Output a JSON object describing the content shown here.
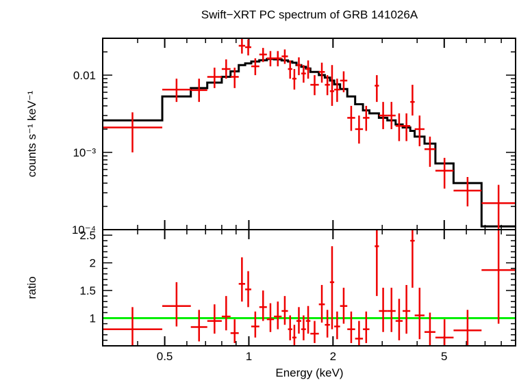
{
  "chart_data": {
    "title": "Swift−XRT PC spectrum of GRB 141026A",
    "type": "scatter",
    "x_scale": "log",
    "xlabel": "Energy (keV)",
    "x_range": [
      0.3,
      9.0
    ],
    "x_tick_labels": [
      {
        "value": 0.5,
        "label": "0.5"
      },
      {
        "value": 1,
        "label": "1"
      },
      {
        "value": 2,
        "label": "2"
      },
      {
        "value": 5,
        "label": "5"
      }
    ],
    "x_minor_ticks": [
      0.4,
      0.6,
      0.7,
      0.8,
      0.9,
      3,
      4,
      6,
      7,
      8,
      9
    ],
    "panels": [
      {
        "name": "spectrum",
        "ylabel": "counts s⁻¹ keV⁻¹",
        "y_scale": "log",
        "y_range": [
          0.0001,
          0.03
        ],
        "y_tick_labels": [
          {
            "value": 0.01,
            "label": "0.01"
          },
          {
            "value": 0.001,
            "label": "10⁻³"
          },
          {
            "value": 0.0001,
            "label": "10⁻⁴"
          }
        ],
        "data_color": "#ee0000",
        "model_color": "#000000",
        "data": [
          {
            "xlo": 0.3,
            "xhi": 0.49,
            "y": 0.0021,
            "ylo": 0.001,
            "yhi": 0.0033
          },
          {
            "xlo": 0.49,
            "xhi": 0.62,
            "y": 0.0065,
            "ylo": 0.0045,
            "yhi": 0.009
          },
          {
            "xlo": 0.62,
            "xhi": 0.71,
            "y": 0.0064,
            "ylo": 0.0045,
            "yhi": 0.009
          },
          {
            "xlo": 0.71,
            "xhi": 0.8,
            "y": 0.0095,
            "ylo": 0.0068,
            "yhi": 0.0125
          },
          {
            "xlo": 0.8,
            "xhi": 0.86,
            "y": 0.012,
            "ylo": 0.009,
            "yhi": 0.016
          },
          {
            "xlo": 0.86,
            "xhi": 0.92,
            "y": 0.0095,
            "ylo": 0.0068,
            "yhi": 0.0125
          },
          {
            "xlo": 0.92,
            "xhi": 0.97,
            "y": 0.024,
            "ylo": 0.019,
            "yhi": 0.03
          },
          {
            "xlo": 0.97,
            "xhi": 1.02,
            "y": 0.023,
            "ylo": 0.018,
            "yhi": 0.029
          },
          {
            "xlo": 1.02,
            "xhi": 1.09,
            "y": 0.013,
            "ylo": 0.01,
            "yhi": 0.0165
          },
          {
            "xlo": 1.09,
            "xhi": 1.16,
            "y": 0.0185,
            "ylo": 0.0148,
            "yhi": 0.0225
          },
          {
            "xlo": 1.16,
            "xhi": 1.23,
            "y": 0.0165,
            "ylo": 0.013,
            "yhi": 0.0205
          },
          {
            "xlo": 1.23,
            "xhi": 1.31,
            "y": 0.0165,
            "ylo": 0.013,
            "yhi": 0.0205
          },
          {
            "xlo": 1.31,
            "xhi": 1.38,
            "y": 0.0175,
            "ylo": 0.014,
            "yhi": 0.0215
          },
          {
            "xlo": 1.38,
            "xhi": 1.43,
            "y": 0.012,
            "ylo": 0.009,
            "yhi": 0.0155
          },
          {
            "xlo": 1.43,
            "xhi": 1.48,
            "y": 0.009,
            "ylo": 0.0065,
            "yhi": 0.012
          },
          {
            "xlo": 1.48,
            "xhi": 1.54,
            "y": 0.0135,
            "ylo": 0.01,
            "yhi": 0.017
          },
          {
            "xlo": 1.54,
            "xhi": 1.6,
            "y": 0.0105,
            "ylo": 0.008,
            "yhi": 0.0135
          },
          {
            "xlo": 1.6,
            "xhi": 1.66,
            "y": 0.012,
            "ylo": 0.009,
            "yhi": 0.0155
          },
          {
            "xlo": 1.66,
            "xhi": 1.78,
            "y": 0.0075,
            "ylo": 0.0055,
            "yhi": 0.01
          },
          {
            "xlo": 1.78,
            "xhi": 1.87,
            "y": 0.011,
            "ylo": 0.008,
            "yhi": 0.0145
          },
          {
            "xlo": 1.87,
            "xhi": 1.95,
            "y": 0.0075,
            "ylo": 0.0055,
            "yhi": 0.01
          },
          {
            "xlo": 1.95,
            "xhi": 2.02,
            "y": 0.0062,
            "ylo": 0.004,
            "yhi": 0.0135
          },
          {
            "xlo": 2.02,
            "xhi": 2.12,
            "y": 0.0065,
            "ylo": 0.0045,
            "yhi": 0.009
          },
          {
            "xlo": 2.12,
            "xhi": 2.25,
            "y": 0.0085,
            "ylo": 0.006,
            "yhi": 0.0112
          },
          {
            "xlo": 2.25,
            "xhi": 2.4,
            "y": 0.0028,
            "ylo": 0.0019,
            "yhi": 0.004
          },
          {
            "xlo": 2.4,
            "xhi": 2.56,
            "y": 0.002,
            "ylo": 0.0013,
            "yhi": 0.003
          },
          {
            "xlo": 2.56,
            "xhi": 2.7,
            "y": 0.0028,
            "ylo": 0.0019,
            "yhi": 0.004
          },
          {
            "xlo": 2.82,
            "xhi": 2.92,
            "y": 0.0073,
            "ylo": 0.0045,
            "yhi": 0.01
          },
          {
            "xlo": 2.92,
            "xhi": 3.13,
            "y": 0.003,
            "ylo": 0.002,
            "yhi": 0.0045
          },
          {
            "xlo": 3.13,
            "xhi": 3.35,
            "y": 0.003,
            "ylo": 0.002,
            "yhi": 0.0045
          },
          {
            "xlo": 3.35,
            "xhi": 3.55,
            "y": 0.0022,
            "ylo": 0.0014,
            "yhi": 0.0032
          },
          {
            "xlo": 3.55,
            "xhi": 3.78,
            "y": 0.0022,
            "ylo": 0.0014,
            "yhi": 0.0032
          },
          {
            "xlo": 3.78,
            "xhi": 3.92,
            "y": 0.0045,
            "ylo": 0.003,
            "yhi": 0.0075
          },
          {
            "xlo": 3.92,
            "xhi": 4.25,
            "y": 0.002,
            "ylo": 0.0012,
            "yhi": 0.003
          },
          {
            "xlo": 4.25,
            "xhi": 4.65,
            "y": 0.0011,
            "ylo": 0.00065,
            "yhi": 0.0016
          },
          {
            "xlo": 4.65,
            "xhi": 5.4,
            "y": 0.00058,
            "ylo": 0.00034,
            "yhi": 0.00085
          },
          {
            "xlo": 5.4,
            "xhi": 6.8,
            "y": 0.00032,
            "ylo": 0.0002,
            "yhi": 0.00048
          },
          {
            "xlo": 6.8,
            "xhi": 9.0,
            "y": 0.00022,
            "ylo": 0.0001,
            "yhi": 0.00038
          }
        ],
        "model_steps": [
          {
            "xlo": 0.3,
            "xhi": 0.49,
            "y": 0.0026
          },
          {
            "xlo": 0.49,
            "xhi": 0.62,
            "y": 0.0053
          },
          {
            "xlo": 0.62,
            "xhi": 0.71,
            "y": 0.0068
          },
          {
            "xlo": 0.71,
            "xhi": 0.8,
            "y": 0.008
          },
          {
            "xlo": 0.8,
            "xhi": 0.86,
            "y": 0.0095
          },
          {
            "xlo": 0.86,
            "xhi": 0.92,
            "y": 0.0112
          },
          {
            "xlo": 0.92,
            "xhi": 0.97,
            "y": 0.0135
          },
          {
            "xlo": 0.97,
            "xhi": 1.02,
            "y": 0.0142
          },
          {
            "xlo": 1.02,
            "xhi": 1.09,
            "y": 0.015
          },
          {
            "xlo": 1.09,
            "xhi": 1.16,
            "y": 0.0156
          },
          {
            "xlo": 1.16,
            "xhi": 1.23,
            "y": 0.0162
          },
          {
            "xlo": 1.23,
            "xhi": 1.31,
            "y": 0.016
          },
          {
            "xlo": 1.31,
            "xhi": 1.38,
            "y": 0.0155
          },
          {
            "xlo": 1.38,
            "xhi": 1.43,
            "y": 0.015
          },
          {
            "xlo": 1.43,
            "xhi": 1.48,
            "y": 0.0145
          },
          {
            "xlo": 1.48,
            "xhi": 1.54,
            "y": 0.0135
          },
          {
            "xlo": 1.54,
            "xhi": 1.6,
            "y": 0.0128
          },
          {
            "xlo": 1.6,
            "xhi": 1.66,
            "y": 0.0122
          },
          {
            "xlo": 1.66,
            "xhi": 1.78,
            "y": 0.011
          },
          {
            "xlo": 1.78,
            "xhi": 1.87,
            "y": 0.01
          },
          {
            "xlo": 1.87,
            "xhi": 1.95,
            "y": 0.0093
          },
          {
            "xlo": 1.95,
            "xhi": 2.02,
            "y": 0.0085
          },
          {
            "xlo": 2.02,
            "xhi": 2.12,
            "y": 0.0076
          },
          {
            "xlo": 2.12,
            "xhi": 2.25,
            "y": 0.0066
          },
          {
            "xlo": 2.25,
            "xhi": 2.4,
            "y": 0.0053
          },
          {
            "xlo": 2.4,
            "xhi": 2.56,
            "y": 0.0042
          },
          {
            "xlo": 2.56,
            "xhi": 2.7,
            "y": 0.0035
          },
          {
            "xlo": 2.7,
            "xhi": 2.92,
            "y": 0.0032
          },
          {
            "xlo": 2.92,
            "xhi": 3.13,
            "y": 0.0028
          },
          {
            "xlo": 3.13,
            "xhi": 3.35,
            "y": 0.0026
          },
          {
            "xlo": 3.35,
            "xhi": 3.55,
            "y": 0.0023
          },
          {
            "xlo": 3.55,
            "xhi": 3.78,
            "y": 0.0021
          },
          {
            "xlo": 3.78,
            "xhi": 3.92,
            "y": 0.0019
          },
          {
            "xlo": 3.92,
            "xhi": 4.25,
            "y": 0.0016
          },
          {
            "xlo": 4.25,
            "xhi": 4.65,
            "y": 0.0013
          },
          {
            "xlo": 4.65,
            "xhi": 5.4,
            "y": 0.00072
          },
          {
            "xlo": 5.4,
            "xhi": 6.8,
            "y": 0.0004
          },
          {
            "xlo": 6.8,
            "xhi": 9.0,
            "y": 0.00011
          }
        ]
      },
      {
        "name": "ratio",
        "ylabel": "ratio",
        "y_scale": "linear",
        "y_range": [
          0.5,
          2.6
        ],
        "y_tick_labels": [
          {
            "value": 1,
            "label": "1"
          },
          {
            "value": 1.5,
            "label": "1.5"
          },
          {
            "value": 2,
            "label": "2"
          },
          {
            "value": 2.5,
            "label": "2.5"
          }
        ],
        "reference_line": {
          "y": 1.0,
          "color": "#00ee00"
        },
        "data_color": "#ee0000",
        "data": [
          {
            "xlo": 0.3,
            "xhi": 0.49,
            "y": 0.8,
            "ylo": 0.42,
            "yhi": 1.2
          },
          {
            "xlo": 0.49,
            "xhi": 0.62,
            "y": 1.22,
            "ylo": 0.85,
            "yhi": 1.65
          },
          {
            "xlo": 0.62,
            "xhi": 0.71,
            "y": 0.84,
            "ylo": 0.58,
            "yhi": 1.15
          },
          {
            "xlo": 0.71,
            "xhi": 0.8,
            "y": 0.95,
            "ylo": 0.72,
            "yhi": 1.25
          },
          {
            "xlo": 0.8,
            "xhi": 0.86,
            "y": 1.03,
            "ylo": 0.78,
            "yhi": 1.4
          },
          {
            "xlo": 0.86,
            "xhi": 0.92,
            "y": 0.73,
            "ylo": 0.55,
            "yhi": 0.98
          },
          {
            "xlo": 0.92,
            "xhi": 0.97,
            "y": 1.62,
            "ylo": 1.3,
            "yhi": 2.1
          },
          {
            "xlo": 0.97,
            "xhi": 1.02,
            "y": 1.52,
            "ylo": 1.2,
            "yhi": 1.85
          },
          {
            "xlo": 1.02,
            "xhi": 1.09,
            "y": 0.85,
            "ylo": 0.65,
            "yhi": 1.12
          },
          {
            "xlo": 1.09,
            "xhi": 1.16,
            "y": 1.2,
            "ylo": 0.95,
            "yhi": 1.5
          },
          {
            "xlo": 1.16,
            "xhi": 1.23,
            "y": 0.98,
            "ylo": 0.75,
            "yhi": 1.27
          },
          {
            "xlo": 1.23,
            "xhi": 1.31,
            "y": 1.03,
            "ylo": 0.8,
            "yhi": 1.3
          },
          {
            "xlo": 1.31,
            "xhi": 1.38,
            "y": 1.13,
            "ylo": 0.88,
            "yhi": 1.4
          },
          {
            "xlo": 1.38,
            "xhi": 1.43,
            "y": 0.8,
            "ylo": 0.6,
            "yhi": 1.05
          },
          {
            "xlo": 1.43,
            "xhi": 1.48,
            "y": 0.65,
            "ylo": 0.48,
            "yhi": 0.88
          },
          {
            "xlo": 1.48,
            "xhi": 1.54,
            "y": 0.95,
            "ylo": 0.72,
            "yhi": 1.2
          },
          {
            "xlo": 1.54,
            "xhi": 1.6,
            "y": 0.8,
            "ylo": 0.6,
            "yhi": 1.05
          },
          {
            "xlo": 1.6,
            "xhi": 1.66,
            "y": 0.95,
            "ylo": 0.72,
            "yhi": 1.22
          },
          {
            "xlo": 1.66,
            "xhi": 1.78,
            "y": 0.72,
            "ylo": 0.55,
            "yhi": 0.95
          },
          {
            "xlo": 1.78,
            "xhi": 1.87,
            "y": 1.25,
            "ylo": 0.92,
            "yhi": 1.6
          },
          {
            "xlo": 1.87,
            "xhi": 1.95,
            "y": 0.88,
            "ylo": 0.65,
            "yhi": 1.15
          },
          {
            "xlo": 1.95,
            "xhi": 2.02,
            "y": 1.65,
            "ylo": 0.8,
            "yhi": 2.3
          },
          {
            "xlo": 2.02,
            "xhi": 2.12,
            "y": 0.85,
            "ylo": 0.62,
            "yhi": 1.12
          },
          {
            "xlo": 2.12,
            "xhi": 2.25,
            "y": 1.22,
            "ylo": 0.9,
            "yhi": 1.55
          },
          {
            "xlo": 2.25,
            "xhi": 2.4,
            "y": 0.8,
            "ylo": 0.55,
            "yhi": 1.12
          },
          {
            "xlo": 2.4,
            "xhi": 2.56,
            "y": 0.63,
            "ylo": 0.4,
            "yhi": 0.95
          },
          {
            "xlo": 2.56,
            "xhi": 2.7,
            "y": 0.8,
            "ylo": 0.55,
            "yhi": 1.12
          },
          {
            "xlo": 2.82,
            "xhi": 2.92,
            "y": 2.3,
            "ylo": 1.4,
            "yhi": 2.9
          },
          {
            "xlo": 2.92,
            "xhi": 3.13,
            "y": 1.13,
            "ylo": 0.75,
            "yhi": 1.55
          },
          {
            "xlo": 3.13,
            "xhi": 3.35,
            "y": 1.13,
            "ylo": 0.75,
            "yhi": 1.55
          },
          {
            "xlo": 3.35,
            "xhi": 3.55,
            "y": 0.95,
            "ylo": 0.6,
            "yhi": 1.35
          },
          {
            "xlo": 3.55,
            "xhi": 3.78,
            "y": 1.13,
            "ylo": 0.72,
            "yhi": 1.6
          },
          {
            "xlo": 3.78,
            "xhi": 3.92,
            "y": 2.4,
            "ylo": 1.55,
            "yhi": 2.95
          },
          {
            "xlo": 3.92,
            "xhi": 4.25,
            "y": 1.05,
            "ylo": 0.62,
            "yhi": 1.55
          },
          {
            "xlo": 4.25,
            "xhi": 4.65,
            "y": 0.75,
            "ylo": 0.48,
            "yhi": 1.1
          },
          {
            "xlo": 4.65,
            "xhi": 5.4,
            "y": 0.65,
            "ylo": 0.4,
            "yhi": 0.98
          },
          {
            "xlo": 5.4,
            "xhi": 6.8,
            "y": 0.78,
            "ylo": 0.48,
            "yhi": 1.15
          },
          {
            "xlo": 6.8,
            "xhi": 9.0,
            "y": 1.87,
            "ylo": 0.9,
            "yhi": 2.95
          }
        ]
      }
    ]
  }
}
